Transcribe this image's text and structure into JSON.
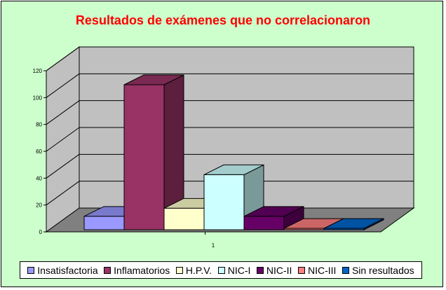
{
  "chart_data": {
    "type": "bar",
    "style": "3d-clustered-column",
    "title": "Resultados de exámenes que no correlacionaron",
    "categories": [
      "1"
    ],
    "xlabel": "",
    "ylabel": "",
    "ylim": [
      0,
      120
    ],
    "yticks": [
      0,
      20,
      40,
      60,
      80,
      100,
      120
    ],
    "grid": true,
    "legend_position": "bottom",
    "series": [
      {
        "name": "Insatisfactoria",
        "values": [
          10
        ],
        "color": "#9999ff"
      },
      {
        "name": "Inflamatorios",
        "values": [
          108
        ],
        "color": "#993366"
      },
      {
        "name": "H.P.V.",
        "values": [
          16
        ],
        "color": "#ffffcc"
      },
      {
        "name": "NIC-I",
        "values": [
          41
        ],
        "color": "#ccffff"
      },
      {
        "name": "NIC-II",
        "values": [
          10
        ],
        "color": "#660066"
      },
      {
        "name": "NIC-III",
        "values": [
          1
        ],
        "color": "#ff8080"
      },
      {
        "name": "Sin resultados",
        "values": [
          1
        ],
        "color": "#0066cc"
      }
    ]
  },
  "colors": {
    "background": "#ccffcc",
    "title": "#ff0000",
    "wall": "#c0c0c0",
    "floor": "#808080"
  }
}
